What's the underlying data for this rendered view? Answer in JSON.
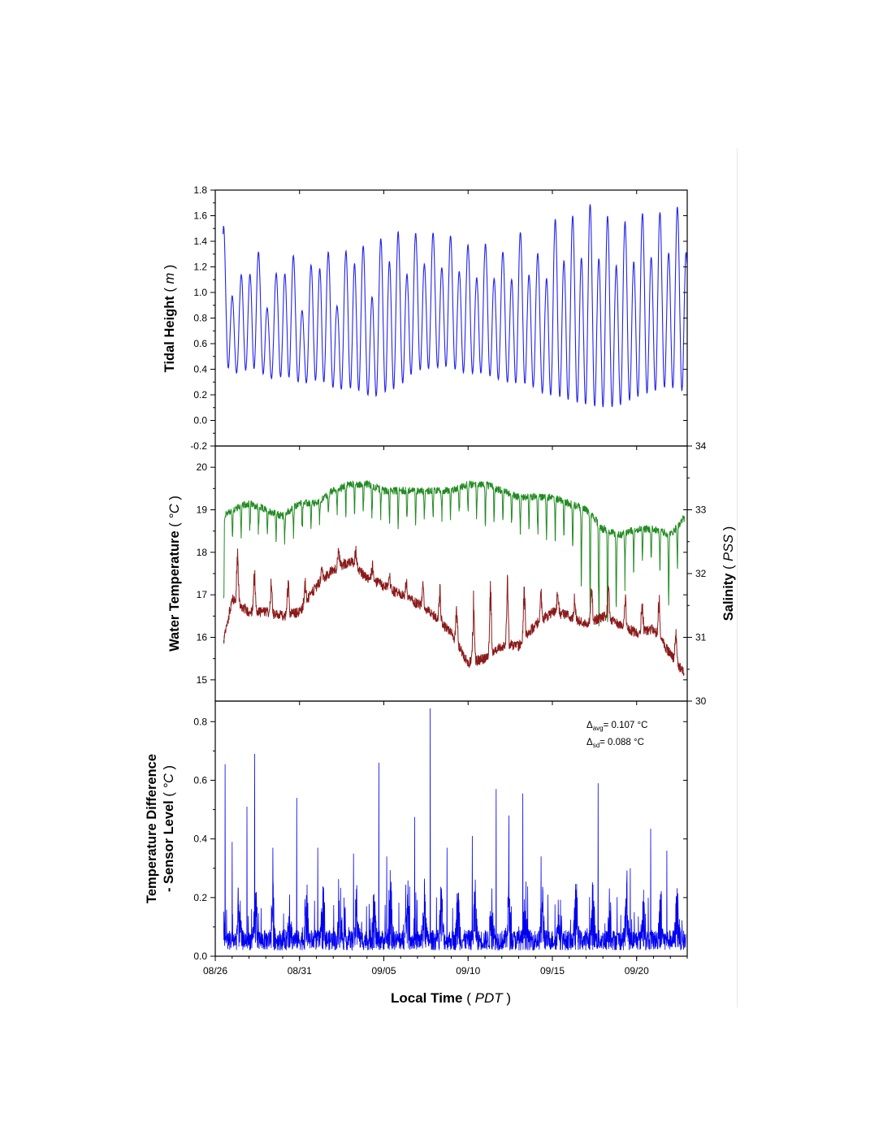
{
  "chart_data": [
    {
      "id": "tidal",
      "type": "line",
      "ylabel": "Tidal Height",
      "ylabel_unit": "m",
      "ylim": [
        -0.2,
        1.8
      ],
      "yticks": [
        "-0.2",
        "0.0",
        "0.2",
        "0.4",
        "0.6",
        "0.8",
        "1.0",
        "1.2",
        "1.4",
        "1.6",
        "1.8"
      ],
      "xlim": [
        "08/26",
        "09/23"
      ],
      "grid": false,
      "series": [
        {
          "color": "#2222ee",
          "x": [
            "08/26 12:00",
            "08/26 18:00",
            "08/27 06:00",
            "08/27 18:00",
            "08/28 06:00",
            "08/28 18:00",
            "08/29 06:00",
            "08/29 18:00",
            "08/30 06:00",
            "08/30 18:00",
            "08/31 06:00",
            "08/31 18:00",
            "09/01 06:00",
            "09/01 18:00",
            "09/02 06:00",
            "09/02 18:00",
            "09/03 06:00",
            "09/03 18:00",
            "09/04 06:00",
            "09/04 18:00",
            "09/05 06:00",
            "09/05 18:00",
            "09/06 06:00",
            "09/06 18:00",
            "09/07 06:00",
            "09/07 18:00",
            "09/08 06:00",
            "09/08 18:00",
            "09/09 06:00",
            "09/09 18:00",
            "09/10 06:00",
            "09/10 18:00",
            "09/11 06:00",
            "09/11 18:00",
            "09/12 06:00",
            "09/12 18:00",
            "09/13 06:00",
            "09/13 18:00",
            "09/14 06:00",
            "09/14 18:00",
            "09/15 06:00",
            "09/15 18:00",
            "09/16 06:00",
            "09/16 18:00",
            "09/17 06:00",
            "09/17 18:00",
            "09/18 06:00",
            "09/18 18:00",
            "09/19 06:00",
            "09/19 18:00",
            "09/20 06:00",
            "09/20 18:00",
            "09/21 06:00",
            "09/21 18:00",
            "09/22 06:00",
            "09/22 18:00"
          ],
          "values": [
            1.52,
            0.3,
            1.0,
            0.29,
            1.48,
            0.27,
            0.97,
            0.23,
            1.47,
            0.2,
            1.0,
            0.2,
            1.5,
            0.15,
            1.1,
            0.12,
            1.55,
            0.08,
            1.2,
            0.05,
            1.59,
            0.1,
            1.4,
            0.25,
            1.5,
            0.28,
            1.45,
            0.3,
            1.44,
            0.25,
            1.35,
            0.25,
            1.39,
            0.2,
            1.3,
            0.16,
            1.5,
            0.14,
            1.28,
            0.05,
            1.6,
            0.0,
            1.6,
            -0.05,
            1.69,
            -0.08,
            1.6,
            -0.07,
            1.55,
            0.0,
            1.62,
            0.05,
            1.62,
            0.1,
            1.67,
            0.06
          ]
        }
      ]
    },
    {
      "id": "water",
      "type": "line",
      "ylabel": "Water Temperature",
      "ylabel_unit": "°C",
      "ylim": [
        14.5,
        20.5
      ],
      "yticks": [
        "15",
        "16",
        "17",
        "18",
        "19",
        "20"
      ],
      "y2label": "Salinity",
      "y2label_unit": "PSS",
      "y2lim": [
        30,
        34
      ],
      "y2ticks": [
        "30",
        "31",
        "32",
        "33",
        "34"
      ],
      "xlim": [
        "08/26",
        "09/23"
      ],
      "grid": false,
      "series": [
        {
          "axis": "right",
          "color": "#228b22",
          "x": [
            "08/26 12:00",
            "08/27 00:00",
            "08/28 00:00",
            "08/29 00:00",
            "08/30 00:00",
            "08/31 00:00",
            "09/01 00:00",
            "09/02 00:00",
            "09/03 00:00",
            "09/04 00:00",
            "09/05 00:00",
            "09/06 00:00",
            "09/07 00:00",
            "09/08 00:00",
            "09/09 00:00",
            "09/10 00:00",
            "09/11 00:00",
            "09/12 00:00",
            "09/13 00:00",
            "09/14 00:00",
            "09/15 00:00",
            "09/16 00:00",
            "09/17 00:00",
            "09/18 00:00",
            "09/19 00:00",
            "09/20 00:00",
            "09/21 00:00",
            "09/22 00:00",
            "09/22 18:00"
          ],
          "values": [
            32.9,
            33.0,
            33.1,
            33.0,
            32.9,
            33.1,
            33.1,
            33.3,
            33.4,
            33.4,
            33.3,
            33.3,
            33.3,
            33.3,
            33.3,
            33.4,
            33.4,
            33.3,
            33.2,
            33.2,
            33.2,
            33.1,
            33.0,
            32.7,
            32.6,
            32.7,
            32.7,
            32.6,
            32.85
          ],
          "dips_to": [
            31.0,
            32.4,
            32.5,
            32.5,
            32.4,
            32.5,
            32.7,
            32.8,
            32.9,
            32.8,
            32.8,
            32.7,
            32.8,
            32.7,
            32.7,
            32.9,
            32.6,
            32.7,
            32.6,
            32.5,
            32.4,
            32.3,
            31.2,
            30.7,
            31.6,
            32.0,
            32.1,
            31.2,
            32.6
          ]
        },
        {
          "axis": "left",
          "color": "#8b1a1a",
          "x": [
            "08/26 12:00",
            "08/27 00:00",
            "08/28 00:00",
            "08/29 00:00",
            "08/30 00:00",
            "08/31 00:00",
            "09/01 00:00",
            "09/02 00:00",
            "09/03 00:00",
            "09/04 00:00",
            "09/05 00:00",
            "09/06 00:00",
            "09/07 00:00",
            "09/08 00:00",
            "09/09 00:00",
            "09/10 00:00",
            "09/11 00:00",
            "09/12 00:00",
            "09/13 00:00",
            "09/14 00:00",
            "09/15 00:00",
            "09/16 00:00",
            "09/17 00:00",
            "09/18 00:00",
            "09/19 00:00",
            "09/20 00:00",
            "09/21 00:00",
            "09/22 00:00",
            "09/22 18:00"
          ],
          "values": [
            15.9,
            16.9,
            16.6,
            16.6,
            16.5,
            16.6,
            17.2,
            17.6,
            17.8,
            17.4,
            17.2,
            17.0,
            16.8,
            16.5,
            16.1,
            15.4,
            15.5,
            15.8,
            15.8,
            16.3,
            16.6,
            16.5,
            16.3,
            16.5,
            16.3,
            16.1,
            16.2,
            15.6,
            15.2
          ],
          "spikes_to": [
            17.9,
            18.3,
            17.9,
            17.5,
            17.6,
            17.4,
            17.6,
            18.0,
            18.3,
            17.8,
            17.6,
            17.4,
            17.4,
            17.3,
            17.0,
            16.8,
            17.6,
            17.8,
            17.6,
            17.1,
            17.3,
            17.0,
            17.1,
            17.8,
            17.2,
            16.8,
            17.3,
            16.8,
            15.8
          ]
        }
      ]
    },
    {
      "id": "diff",
      "type": "line",
      "ylabel_line1": "Temperature Difference",
      "ylabel_line2": "- Sensor Level",
      "ylabel_unit": "°C",
      "xlabel": "Local Time",
      "xlabel_unit": "PDT",
      "ylim": [
        0,
        0.87
      ],
      "yticks": [
        "0.0",
        "0.2",
        "0.4",
        "0.6",
        "0.8"
      ],
      "xlim": [
        "08/26",
        "09/23"
      ],
      "xticks": [
        "08/26",
        "08/31",
        "09/05",
        "09/10",
        "09/15",
        "09/20"
      ],
      "grid": false,
      "annotation": {
        "avg_label": "Δ",
        "avg_sub": "avg",
        "avg_value": "= 0.107 °C",
        "sd_label": "Δ",
        "sd_sub": "sd",
        "sd_value": "= 0.088 °C"
      },
      "series": [
        {
          "color": "#0000ee",
          "baseline_mean": 0.107,
          "spikes": [
            {
              "x": "08/26 14:00",
              "y": 0.655
            },
            {
              "x": "08/27 00:00",
              "y": 0.39
            },
            {
              "x": "08/27 21:00",
              "y": 0.51
            },
            {
              "x": "08/28 08:00",
              "y": 0.69
            },
            {
              "x": "08/29 10:00",
              "y": 0.37
            },
            {
              "x": "08/30 20:00",
              "y": 0.54
            },
            {
              "x": "09/01 02:00",
              "y": 0.37
            },
            {
              "x": "09/03 05:00",
              "y": 0.35
            },
            {
              "x": "09/04 17:00",
              "y": 0.66
            },
            {
              "x": "09/05 04:00",
              "y": 0.34
            },
            {
              "x": "09/06 20:00",
              "y": 0.475
            },
            {
              "x": "09/07 18:00",
              "y": 0.845
            },
            {
              "x": "09/08 18:00",
              "y": 0.37
            },
            {
              "x": "09/10 06:00",
              "y": 0.41
            },
            {
              "x": "09/11 16:00",
              "y": 0.57
            },
            {
              "x": "09/12 10:00",
              "y": 0.48
            },
            {
              "x": "09/13 06:00",
              "y": 0.555
            },
            {
              "x": "09/14 08:00",
              "y": 0.34
            },
            {
              "x": "09/17 17:00",
              "y": 0.59
            },
            {
              "x": "09/19 15:00",
              "y": 0.3
            },
            {
              "x": "09/20 20:00",
              "y": 0.435
            },
            {
              "x": "09/21 19:00",
              "y": 0.36
            }
          ]
        }
      ]
    }
  ]
}
